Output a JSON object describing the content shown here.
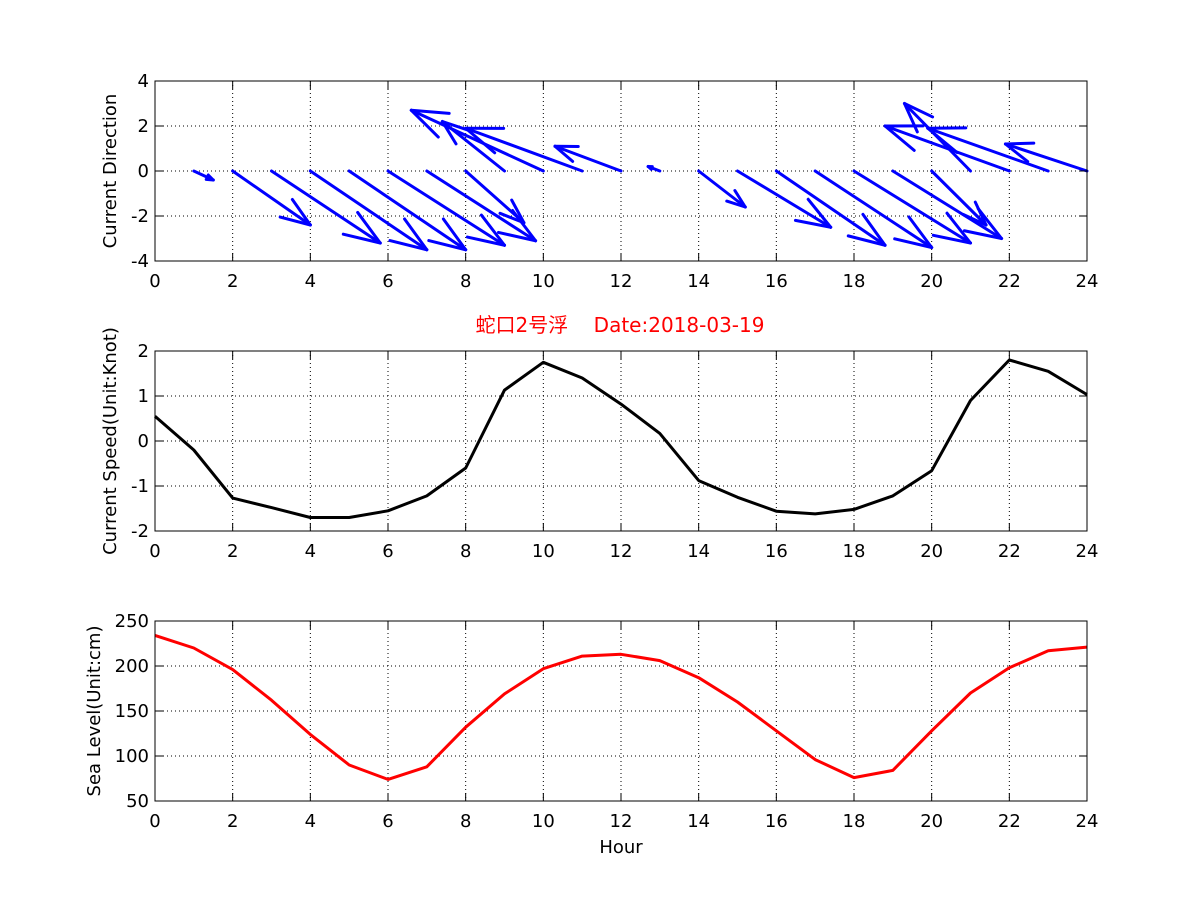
{
  "figure": {
    "title": "蛇口2号浮    Date:2018-03-19"
  },
  "chart_data": [
    {
      "type": "quiver",
      "name": "current-direction",
      "xlabel": "",
      "ylabel": "Current Direction",
      "xlim": [
        0,
        24
      ],
      "ylim": [
        -4,
        4
      ],
      "xticks": [
        0,
        2,
        4,
        6,
        8,
        10,
        12,
        14,
        16,
        18,
        20,
        22,
        24
      ],
      "yticks": [
        -4,
        -2,
        0,
        2,
        4
      ],
      "grid": true,
      "color": "#0000ff",
      "x": [
        1,
        2,
        3,
        4,
        5,
        6,
        7,
        8,
        9,
        10,
        11,
        12,
        13,
        14,
        15,
        16,
        17,
        18,
        19,
        20,
        21,
        22,
        23,
        24
      ],
      "u": [
        0.5,
        2.0,
        2.8,
        3.0,
        3.0,
        3.0,
        2.8,
        1.5,
        -1.6,
        -3.4,
        -3.0,
        -1.7,
        -0.3,
        1.2,
        2.4,
        2.8,
        3.0,
        3.0,
        2.8,
        1.4,
        -1.7,
        -3.2,
        -3.1,
        -2.1
      ],
      "v": [
        -0.4,
        -2.4,
        -3.2,
        -3.5,
        -3.5,
        -3.3,
        -3.1,
        -2.3,
        2.2,
        2.7,
        1.9,
        1.1,
        0.2,
        -1.6,
        -2.5,
        -3.3,
        -3.4,
        -3.2,
        -3.0,
        -2.4,
        3.0,
        2.0,
        1.9,
        1.2
      ]
    },
    {
      "type": "line",
      "name": "current-speed",
      "xlabel": "",
      "ylabel": "Current Speed(Unit:Knot)",
      "xlim": [
        0,
        24
      ],
      "ylim": [
        -2,
        2
      ],
      "xticks": [
        0,
        2,
        4,
        6,
        8,
        10,
        12,
        14,
        16,
        18,
        20,
        22,
        24
      ],
      "yticks": [
        -2,
        -1,
        0,
        1,
        2
      ],
      "grid": true,
      "color": "#000000",
      "x": [
        0,
        1,
        2,
        3,
        4,
        5,
        6,
        7,
        8,
        9,
        10,
        11,
        12,
        13,
        14,
        15,
        16,
        17,
        18,
        19,
        20,
        21,
        22,
        23,
        24
      ],
      "y": [
        0.55,
        -0.2,
        -1.27,
        -1.48,
        -1.7,
        -1.7,
        -1.55,
        -1.22,
        -0.6,
        1.13,
        1.75,
        1.4,
        0.82,
        0.17,
        -0.88,
        -1.25,
        -1.56,
        -1.62,
        -1.52,
        -1.22,
        -0.66,
        0.9,
        1.8,
        1.55,
        1.03
      ]
    },
    {
      "type": "line",
      "name": "sea-level",
      "xlabel": "Hour",
      "ylabel": "Sea Level(Unit:cm)",
      "xlim": [
        0,
        24
      ],
      "ylim": [
        50,
        250
      ],
      "xticks": [
        0,
        2,
        4,
        6,
        8,
        10,
        12,
        14,
        16,
        18,
        20,
        22,
        24
      ],
      "yticks": [
        50,
        100,
        150,
        200,
        250
      ],
      "grid": true,
      "color": "#ff0000",
      "x": [
        0,
        1,
        2,
        3,
        4,
        5,
        6,
        7,
        8,
        9,
        10,
        11,
        12,
        13,
        14,
        15,
        16,
        17,
        18,
        19,
        20,
        21,
        22,
        23,
        24
      ],
      "y": [
        234,
        220,
        196,
        162,
        124,
        90,
        74,
        88,
        132,
        169,
        197,
        211,
        213,
        206,
        187,
        160,
        128,
        96,
        76,
        84,
        128,
        170,
        198,
        217,
        221
      ]
    }
  ]
}
